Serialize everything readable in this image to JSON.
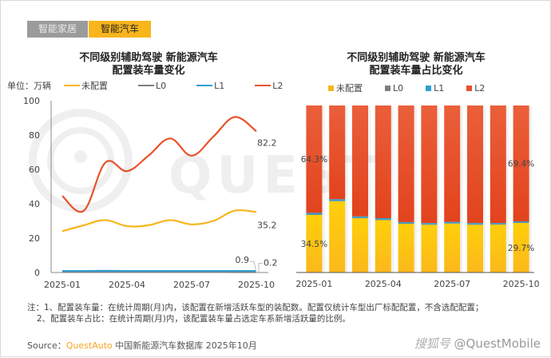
{
  "tabs": [
    {
      "label": "智能家居",
      "active": false
    },
    {
      "label": "智能汽车",
      "active": true
    }
  ],
  "colors": {
    "unconfigured": "#f8b51c",
    "L0": "#7f7f7f",
    "L1": "#2e9fd1",
    "L2": "#e8522b",
    "tab_active": "#f8b51c",
    "tab_inactive": "#9b9b9b",
    "brand": "#f5a623"
  },
  "left_chart": {
    "title_line1": "不同级别辅助驾驶 新能源汽车",
    "title_line2": "配置装车量变化",
    "unit": "单位：万辆"
  },
  "right_chart": {
    "title_line1": "不同级别辅助驾驶 新能源汽车",
    "title_line2": "配置装车量占比变化"
  },
  "chart_data": [
    {
      "type": "line",
      "title": "不同级别辅助驾驶 新能源汽车配置装车量变化",
      "ylabel": "单位：万辆",
      "xlabel": "",
      "x": [
        "2025-01",
        "2025-02",
        "2025-03",
        "2025-04",
        "2025-05",
        "2025-06",
        "2025-07",
        "2025-08",
        "2025-09",
        "2025-10"
      ],
      "x_tick_labels": [
        "2025-01",
        "2025-04",
        "2025-07",
        "2025-10"
      ],
      "x_tick_indices": [
        0,
        3,
        6,
        9
      ],
      "ylim": [
        0,
        100
      ],
      "y_ticks": [
        0,
        20,
        40,
        60,
        80,
        100
      ],
      "grid": false,
      "legend": "top",
      "series": [
        {
          "name": "未配置",
          "key": "unconfigured",
          "values": [
            24,
            27.5,
            30.5,
            27,
            27.5,
            30.5,
            28,
            30,
            36,
            35.2
          ]
        },
        {
          "name": "L0",
          "key": "L0",
          "values": [
            0.3,
            0.3,
            0.3,
            0.3,
            0.3,
            0.3,
            0.3,
            0.3,
            0.2,
            0.2
          ]
        },
        {
          "name": "L1",
          "key": "L1",
          "values": [
            0.9,
            0.9,
            1.0,
            0.9,
            0.9,
            0.9,
            0.9,
            0.9,
            0.9,
            0.9
          ]
        },
        {
          "name": "L2",
          "key": "L2",
          "values": [
            44.5,
            36,
            64,
            59,
            68,
            78,
            68,
            79,
            90.5,
            82.2
          ]
        }
      ],
      "annotations": [
        {
          "series": "L2",
          "index": 9,
          "text": "82.2"
        },
        {
          "series": "未配置",
          "index": 9,
          "text": "35.2"
        },
        {
          "series": "L1",
          "index": 9,
          "text": "0.9"
        },
        {
          "series": "L0",
          "index": 9,
          "text": "0.2"
        }
      ]
    },
    {
      "type": "bar",
      "stacked": true,
      "title": "不同级别辅助驾驶 新能源汽车配置装车量占比变化",
      "categories": [
        "2025-01",
        "2025-02",
        "2025-03",
        "2025-04",
        "2025-05",
        "2025-06",
        "2025-07",
        "2025-08",
        "2025-09",
        "2025-10"
      ],
      "x_tick_labels": [
        "2025-01",
        "2025-04",
        "2025-07",
        "2025-10"
      ],
      "x_tick_indices": [
        0,
        3,
        6,
        9
      ],
      "ylim": [
        0,
        100
      ],
      "unit": "%",
      "legend": "top",
      "series": [
        {
          "name": "未配置",
          "key": "unconfigured",
          "values": [
            34.5,
            42.7,
            32.5,
            31.4,
            29.2,
            28.6,
            29.3,
            28.6,
            28.7,
            29.7
          ]
        },
        {
          "name": "L0",
          "key": "L0",
          "values": [
            0.2,
            0.2,
            0.2,
            0.2,
            0.2,
            0.2,
            0.2,
            0.2,
            0.2,
            0.2
          ]
        },
        {
          "name": "L1",
          "key": "L1",
          "values": [
            1.0,
            1.0,
            0.9,
            0.9,
            0.8,
            0.8,
            0.8,
            0.8,
            0.7,
            0.7
          ]
        },
        {
          "name": "L2",
          "key": "L2",
          "values": [
            64.3,
            56.1,
            66.4,
            67.5,
            69.8,
            70.4,
            69.7,
            70.4,
            70.4,
            69.4
          ]
        }
      ],
      "annotations": [
        {
          "series": "L2",
          "index": 0,
          "text": "64.3%"
        },
        {
          "series": "未配置",
          "index": 0,
          "text": "34.5%"
        },
        {
          "series": "L2",
          "index": 9,
          "text": "69.4%"
        },
        {
          "series": "未配置",
          "index": 9,
          "text": "29.7%"
        }
      ]
    }
  ],
  "legend_labels": {
    "unconfigured": "未配置",
    "L0": "L0",
    "L1": "L1",
    "L2": "L2"
  },
  "notes": {
    "line1": "注：1、配置装车量：在统计周期(月)内，该配置在新增活跃车型的装配数。配置仅统计车型出厂标配配置，不含选配配置；",
    "line2": "2、配置装车占比：在统计周期(月)内，该配置装车量占选定车系新增活跃量的比例。"
  },
  "source": {
    "prefix": "Source：",
    "brand": "QuestAuto",
    "suffix": " 中国新能源汽车数据库 2025年10月"
  },
  "watermark": {
    "platform": "搜狐号",
    "handle": "@QuestMobile"
  }
}
